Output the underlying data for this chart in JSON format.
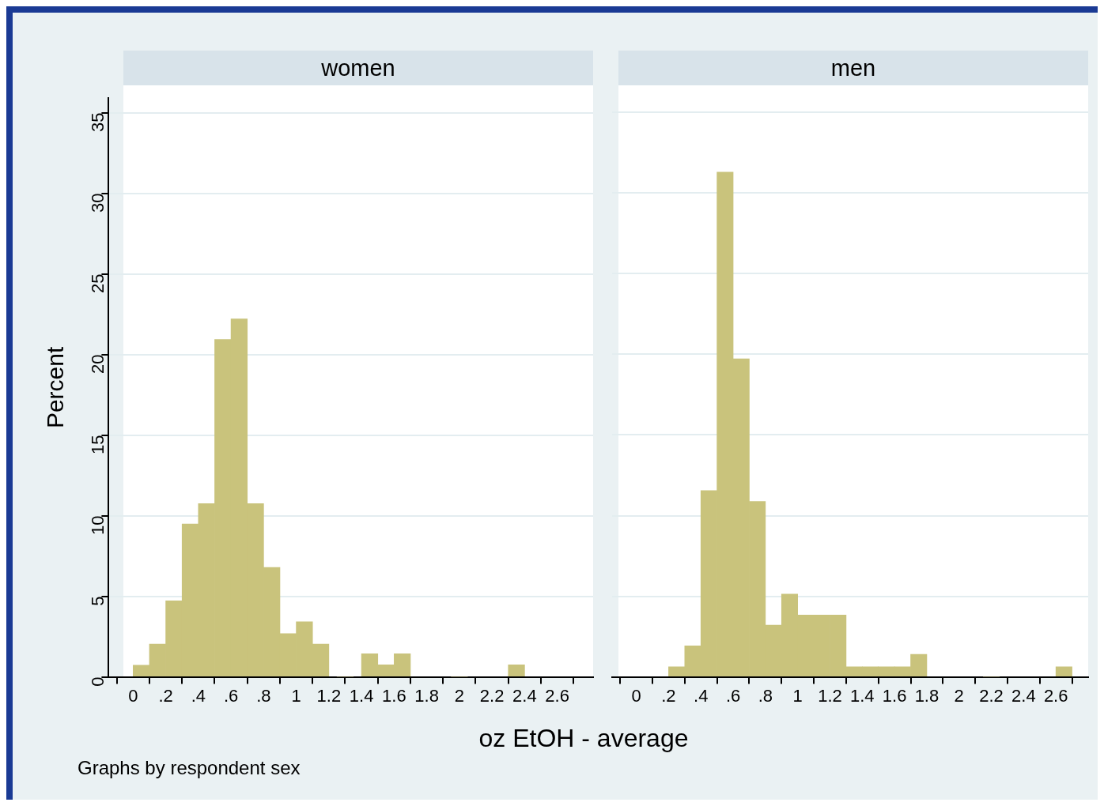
{
  "chart_data": [
    {
      "type": "histogram",
      "title": "women",
      "ylabel": "Percent",
      "xlabel": "oz EtOH - average",
      "annotations": [
        "Graphs by respondent sex"
      ],
      "color": "#c9c37c",
      "bins": [
        0,
        0.1,
        0.2,
        0.3,
        0.4,
        0.5,
        0.6,
        0.7,
        0.8,
        0.9,
        1.0,
        1.1,
        1.2,
        1.4,
        1.5,
        1.6,
        1.7,
        2.3,
        2.4
      ],
      "values": [
        0.73,
        2.04,
        4.72,
        9.48,
        10.75,
        20.93,
        22.2,
        10.75,
        6.79,
        2.69,
        3.42,
        2.04,
        0,
        1.43,
        0.75,
        1.43,
        0,
        0.75
      ],
      "xlim": [
        -0.15,
        2.82
      ],
      "xticks": [
        0,
        {
          "value": 0.2,
          "label": ".2"
        },
        {
          "value": 0.4,
          "label": ".4"
        },
        {
          "value": 0.6,
          "label": ".6"
        },
        {
          "value": 0.8,
          "label": ".8"
        },
        1,
        1.2,
        1.4,
        1.6,
        1.8,
        2,
        2.2,
        2.4,
        2.6
      ],
      "ylim": [
        0,
        35.9
      ],
      "yticks": [
        0,
        5,
        10,
        15,
        20,
        25,
        30,
        35
      ],
      "grid": "y"
    },
    {
      "type": "histogram",
      "title": "men",
      "color": "#c9c37c",
      "bins": [
        0.2,
        0.3,
        0.4,
        0.5,
        0.6,
        0.7,
        0.8,
        0.9,
        1.0,
        1.1,
        1.2,
        1.3,
        1.4,
        1.5,
        1.6,
        1.7,
        1.8,
        2.6,
        2.7
      ],
      "values": [
        0.62,
        1.92,
        11.55,
        31.3,
        19.73,
        10.88,
        3.21,
        5.13,
        3.83,
        3.83,
        3.83,
        0.62,
        0.62,
        0.62,
        0.62,
        1.4,
        0,
        0.62
      ],
      "xlim": [
        -0.15,
        2.8
      ],
      "xticks": [
        0,
        {
          "value": 0.2,
          "label": ".2"
        },
        {
          "value": 0.4,
          "label": ".4"
        },
        {
          "value": 0.6,
          "label": ".6"
        },
        {
          "value": 0.8,
          "label": ".8"
        },
        1,
        1.2,
        1.4,
        1.6,
        1.8,
        2,
        2.2,
        2.4,
        2.6
      ],
      "yticks": [
        0,
        5,
        10,
        15,
        20,
        25,
        30,
        35
      ],
      "grid": "y",
      "tick_labels": "x"
    }
  ]
}
